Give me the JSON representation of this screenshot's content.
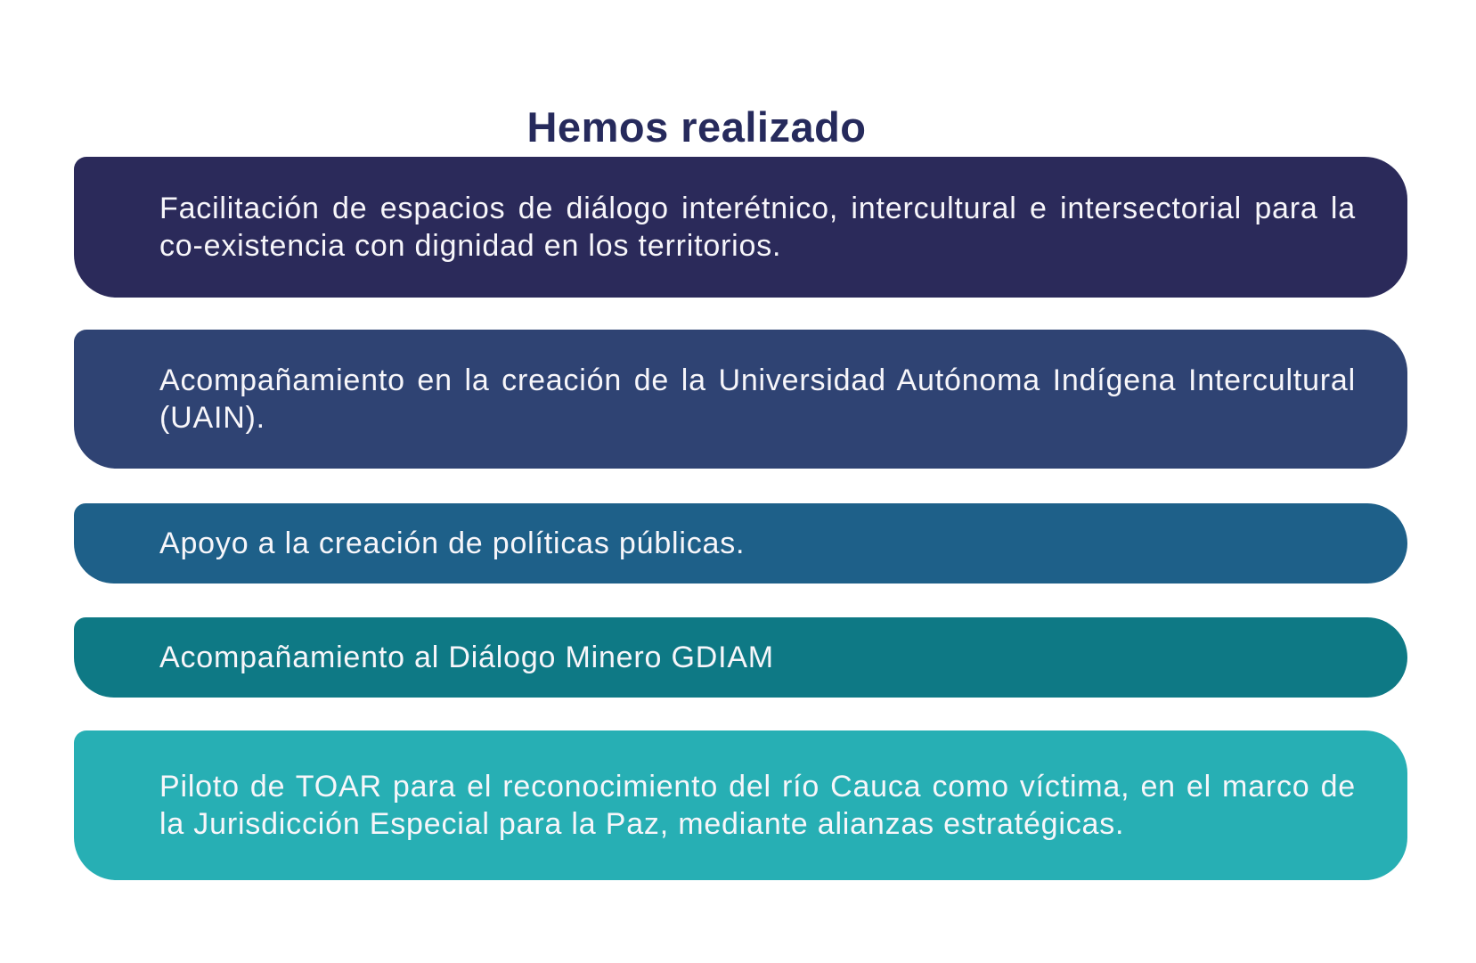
{
  "page": {
    "background_color": "#ffffff",
    "text_color": "#f7f6fa"
  },
  "title": {
    "text": "Hemos realizado",
    "color": "#262a5c"
  },
  "bars": [
    {
      "text": "Facilitación de espacios de diálogo interétnico, intercultural e intersectorial para la co-existencia con dignidad en los territorios.",
      "color": "#2b2a5a"
    },
    {
      "text": "Acompañamiento en la creación de la Universidad Autónoma Indígena Intercultural (UAIN).",
      "color": "#2f4373"
    },
    {
      "text": "Apoyo a la creación de políticas públicas.",
      "color": "#1e6089"
    },
    {
      "text": "Acompañamiento al Diálogo Minero GDIAM",
      "color": "#0e7985"
    },
    {
      "text": "Piloto de TOAR para el reconocimiento del río Cauca como víctima, en el marco de la Jurisdicción Especial para la Paz, mediante alianzas estratégicas.",
      "color": "#27afb4"
    }
  ]
}
